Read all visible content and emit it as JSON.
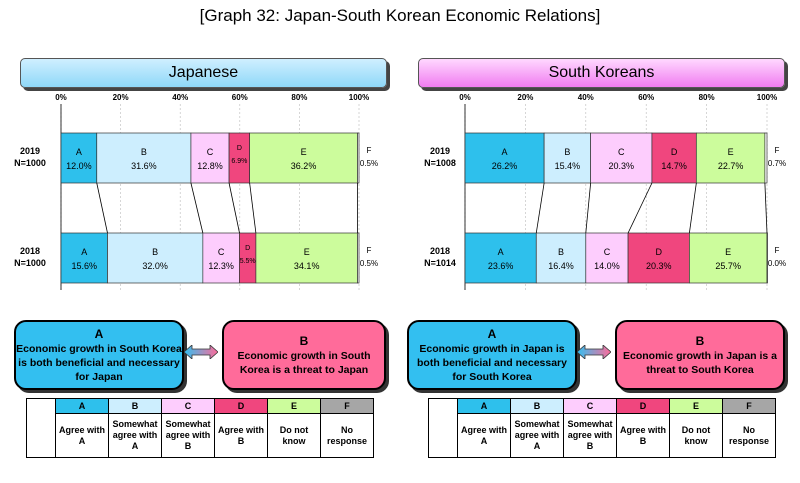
{
  "title": "[Graph 32: Japan-South Korean Economic Relations]",
  "colors": {
    "A": "#2ec0ec",
    "B": "#cdeefe",
    "C": "#fdcdfd",
    "D": "#f0467e",
    "E": "#ccfc9c",
    "F": "#ffffff"
  },
  "chart_data": [
    {
      "type": "bar",
      "stacked": true,
      "orientation": "horizontal",
      "title": "Japanese",
      "categories": [
        "A",
        "B",
        "C",
        "D",
        "E",
        "F"
      ],
      "tick_labels": [
        "0%",
        "20%",
        "40%",
        "60%",
        "80%",
        "100%"
      ],
      "xlim": [
        0,
        100
      ],
      "rows": [
        {
          "year": "2019",
          "n": "N=1000",
          "values": [
            12.0,
            31.6,
            12.8,
            6.9,
            36.2,
            0.5
          ],
          "labels": [
            "12.0%",
            "31.6%",
            "12.8%",
            "6.9%",
            "36.2%",
            "0.5%"
          ]
        },
        {
          "year": "2018",
          "n": "N=1000",
          "values": [
            15.6,
            32.0,
            12.3,
            5.5,
            34.1,
            0.5
          ],
          "labels": [
            "15.6%",
            "32.0%",
            "12.3%",
            "5.5%",
            "34.1%",
            "0.5%"
          ]
        }
      ]
    },
    {
      "type": "bar",
      "stacked": true,
      "orientation": "horizontal",
      "title": "South Koreans",
      "categories": [
        "A",
        "B",
        "C",
        "D",
        "E",
        "F"
      ],
      "tick_labels": [
        "0%",
        "20%",
        "40%",
        "60%",
        "80%",
        "100%"
      ],
      "xlim": [
        0,
        100
      ],
      "rows": [
        {
          "year": "2019",
          "n": "N=1008",
          "values": [
            26.2,
            15.4,
            20.3,
            14.7,
            22.7,
            0.7
          ],
          "labels": [
            "26.2%",
            "15.4%",
            "20.3%",
            "14.7%",
            "22.7%",
            "0.7%"
          ]
        },
        {
          "year": "2018",
          "n": "N=1014",
          "values": [
            23.6,
            16.4,
            14.0,
            20.3,
            25.7,
            0.0
          ],
          "labels": [
            "23.6%",
            "16.4%",
            "14.0%",
            "20.3%",
            "25.7%",
            "0.0%"
          ]
        }
      ]
    }
  ],
  "jp_box_a": {
    "letter": "A",
    "text": "Economic growth in South Korea is both beneficial and necessary for Japan"
  },
  "jp_box_b": {
    "letter": "B",
    "text": "Economic growth in South Korea is a threat to Japan"
  },
  "kr_box_a": {
    "letter": "A",
    "text": "Economic growth in Japan is both beneficial and necessary for South Korea"
  },
  "kr_box_b": {
    "letter": "B",
    "text": "Economic growth in Japan is a threat to South Korea"
  },
  "legend": {
    "letters": [
      "A",
      "B",
      "C",
      "D",
      "E",
      "F"
    ],
    "descriptions": [
      "Agree with A",
      "Somewhat agree with A",
      "Somewhat agree with B",
      "Agree with B",
      "Do not know",
      "No response"
    ]
  }
}
